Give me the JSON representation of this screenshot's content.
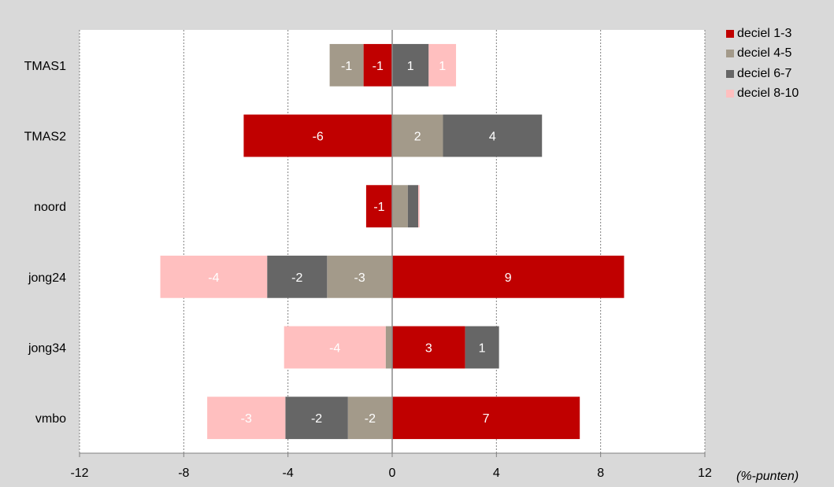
{
  "chart_data": {
    "type": "bar",
    "orientation": "horizontal",
    "stacked": true,
    "categories": [
      "TMAS1",
      "TMAS2",
      "noord",
      "jong24",
      "jong34",
      "vmbo"
    ],
    "series": [
      {
        "name": "deciel 1-3",
        "color": "#c00000",
        "values": [
          -1.1,
          -5.7,
          -1.0,
          8.9,
          2.8,
          7.2
        ],
        "labels": [
          "-1",
          "-6",
          "-1",
          "9",
          "3",
          "7"
        ]
      },
      {
        "name": "deciel 4-5",
        "color": "#a39a8a",
        "values": [
          -1.3,
          1.95,
          0.6,
          -2.5,
          -0.25,
          -1.7
        ],
        "labels": [
          "-1",
          "2",
          "",
          "-3",
          "",
          "-2"
        ]
      },
      {
        "name": "deciel 6-7",
        "color": "#666666",
        "values": [
          1.4,
          3.8,
          0.4,
          -2.3,
          1.3,
          -2.4
        ],
        "labels": [
          "1",
          "4",
          "",
          "-2",
          "1",
          "-2"
        ]
      },
      {
        "name": "deciel 8-10",
        "color": "#ffbfbf",
        "values": [
          1.05,
          0.0,
          0.05,
          -4.1,
          -3.9,
          -3.0
        ],
        "labels": [
          "1",
          "",
          "",
          "-4",
          "-4",
          "-3"
        ]
      }
    ],
    "xlim": [
      -12,
      12
    ],
    "xticks": [
      "-12",
      "-8",
      "-4",
      "0",
      "4",
      "8",
      "12"
    ],
    "xtick_values": [
      -12,
      -8,
      -4,
      0,
      4,
      8,
      12
    ],
    "grid": "vertical dotted",
    "legend": "right",
    "unit_label": "(%-punten)"
  }
}
